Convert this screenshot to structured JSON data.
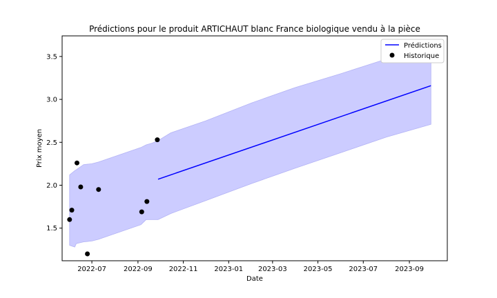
{
  "chart_data": {
    "type": "line",
    "title": "Prédictions pour le produit ARTICHAUT blanc France biologique vendu à la pièce",
    "xlabel": "Date",
    "ylabel": "Prix moyen",
    "xlim": [
      "2022-05-22",
      "2023-10-22"
    ],
    "ylim": [
      1.12,
      3.74
    ],
    "x_ticks": [
      "2022-07",
      "2022-09",
      "2022-11",
      "2023-01",
      "2023-03",
      "2023-05",
      "2023-07",
      "2023-09"
    ],
    "y_ticks": [
      1.5,
      2.0,
      2.5,
      3.0,
      3.5
    ],
    "y_tick_labels": [
      "1.5",
      "2.0",
      "2.5",
      "3.0",
      "3.5"
    ],
    "grid": false,
    "legend": {
      "placement": "top-right"
    },
    "series": [
      {
        "name": "Prédictions",
        "kind": "line",
        "color": "#0000ff",
        "x": [
          "2022-09-28",
          "2023-09-30"
        ],
        "y": [
          2.07,
          3.16
        ]
      },
      {
        "name": "Historique",
        "kind": "scatter",
        "color": "#000000",
        "x": [
          "2022-06-01",
          "2022-06-04",
          "2022-06-11",
          "2022-06-16",
          "2022-06-25",
          "2022-07-10",
          "2022-09-06",
          "2022-09-13",
          "2022-09-27"
        ],
        "y": [
          1.6,
          1.71,
          2.26,
          1.98,
          1.2,
          1.95,
          1.69,
          1.81,
          2.53
        ]
      }
    ],
    "band": {
      "color": "#ccccff",
      "x": [
        "2022-06-01",
        "2022-06-08",
        "2022-06-10",
        "2022-06-20",
        "2022-07-01",
        "2022-07-10",
        "2022-09-05",
        "2022-09-12",
        "2022-09-20",
        "2022-09-28",
        "2022-10-15",
        "2022-12-01",
        "2023-02-01",
        "2023-04-01",
        "2023-06-01",
        "2023-08-01",
        "2023-09-30"
      ],
      "lower": [
        1.3,
        1.28,
        1.32,
        1.34,
        1.35,
        1.37,
        1.54,
        1.6,
        1.6,
        1.6,
        1.67,
        1.82,
        2.02,
        2.2,
        2.38,
        2.56,
        2.71
      ],
      "upper": [
        2.12,
        2.17,
        2.18,
        2.24,
        2.25,
        2.27,
        2.44,
        2.47,
        2.49,
        2.52,
        2.61,
        2.75,
        2.96,
        3.14,
        3.3,
        3.47,
        3.6
      ]
    }
  }
}
